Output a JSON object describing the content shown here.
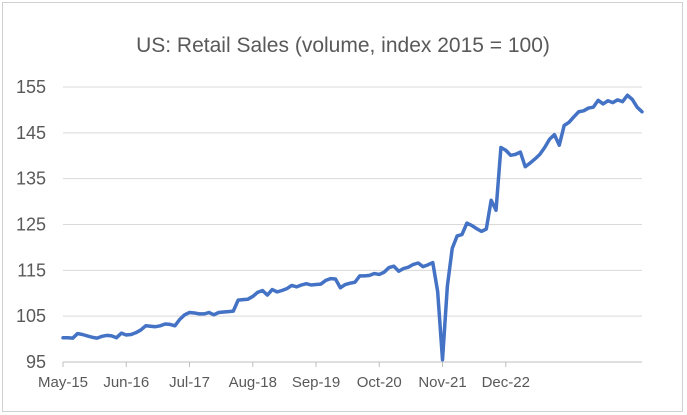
{
  "colors": {
    "series": "#4472c4",
    "text": "#595959",
    "grid": "#d9d9d9",
    "axis": "#bfbfbf",
    "border": "#d0d0d0"
  },
  "chart_data": {
    "type": "line",
    "title": "US: Retail Sales (volume, index 2015 = 100)",
    "xlabel": "",
    "ylabel": "",
    "ylim": [
      95,
      155
    ],
    "y_ticks": [
      "95",
      "105",
      "115",
      "125",
      "135",
      "145",
      "155"
    ],
    "x_tick_labels": [
      "May-15",
      "Jun-16",
      "Jul-17",
      "Aug-18",
      "Sep-19",
      "Oct-20",
      "Nov-21",
      "Dec-22"
    ],
    "x_range": [
      "May-15",
      "Dec-22"
    ],
    "grid": "horizontal",
    "legend": "none",
    "series": [
      {
        "values": [
          100.3,
          100.3,
          100.2,
          101.2,
          101.0,
          100.7,
          100.4,
          100.2,
          100.6,
          100.8,
          100.7,
          100.3,
          101.3,
          100.9,
          101.0,
          101.4,
          102.0,
          102.9,
          102.8,
          102.7,
          102.9,
          103.3,
          103.2,
          102.9,
          104.3,
          105.3,
          105.8,
          105.7,
          105.5,
          105.5,
          105.8,
          105.3,
          105.8,
          105.9,
          106.0,
          106.1,
          108.5,
          108.6,
          108.7,
          109.3,
          110.2,
          110.6,
          109.6,
          110.8,
          110.3,
          110.6,
          111.0,
          111.7,
          111.4,
          111.8,
          112.1,
          111.8,
          111.9,
          112.0,
          112.8,
          113.2,
          113.1,
          111.2,
          111.9,
          112.2,
          112.4,
          113.8,
          113.8,
          113.9,
          114.3,
          114.1,
          114.6,
          115.6,
          115.9,
          114.8,
          115.4,
          115.7,
          116.3,
          116.6,
          115.8,
          116.2,
          116.7,
          110.4,
          95.5,
          111.6,
          119.8,
          122.5,
          122.8,
          125.3,
          124.8,
          124.1,
          123.5,
          124.0,
          130.3,
          128.1,
          141.8,
          141.2,
          140.1,
          140.3,
          140.8,
          137.6,
          138.4,
          139.3,
          140.3,
          141.8,
          143.6,
          144.6,
          142.3,
          146.6,
          147.3,
          148.5,
          149.6,
          149.8,
          150.4,
          150.6,
          152.1,
          151.3,
          152.0,
          151.6,
          152.2,
          151.8,
          153.2,
          152.3,
          150.6,
          149.6
        ]
      }
    ]
  }
}
